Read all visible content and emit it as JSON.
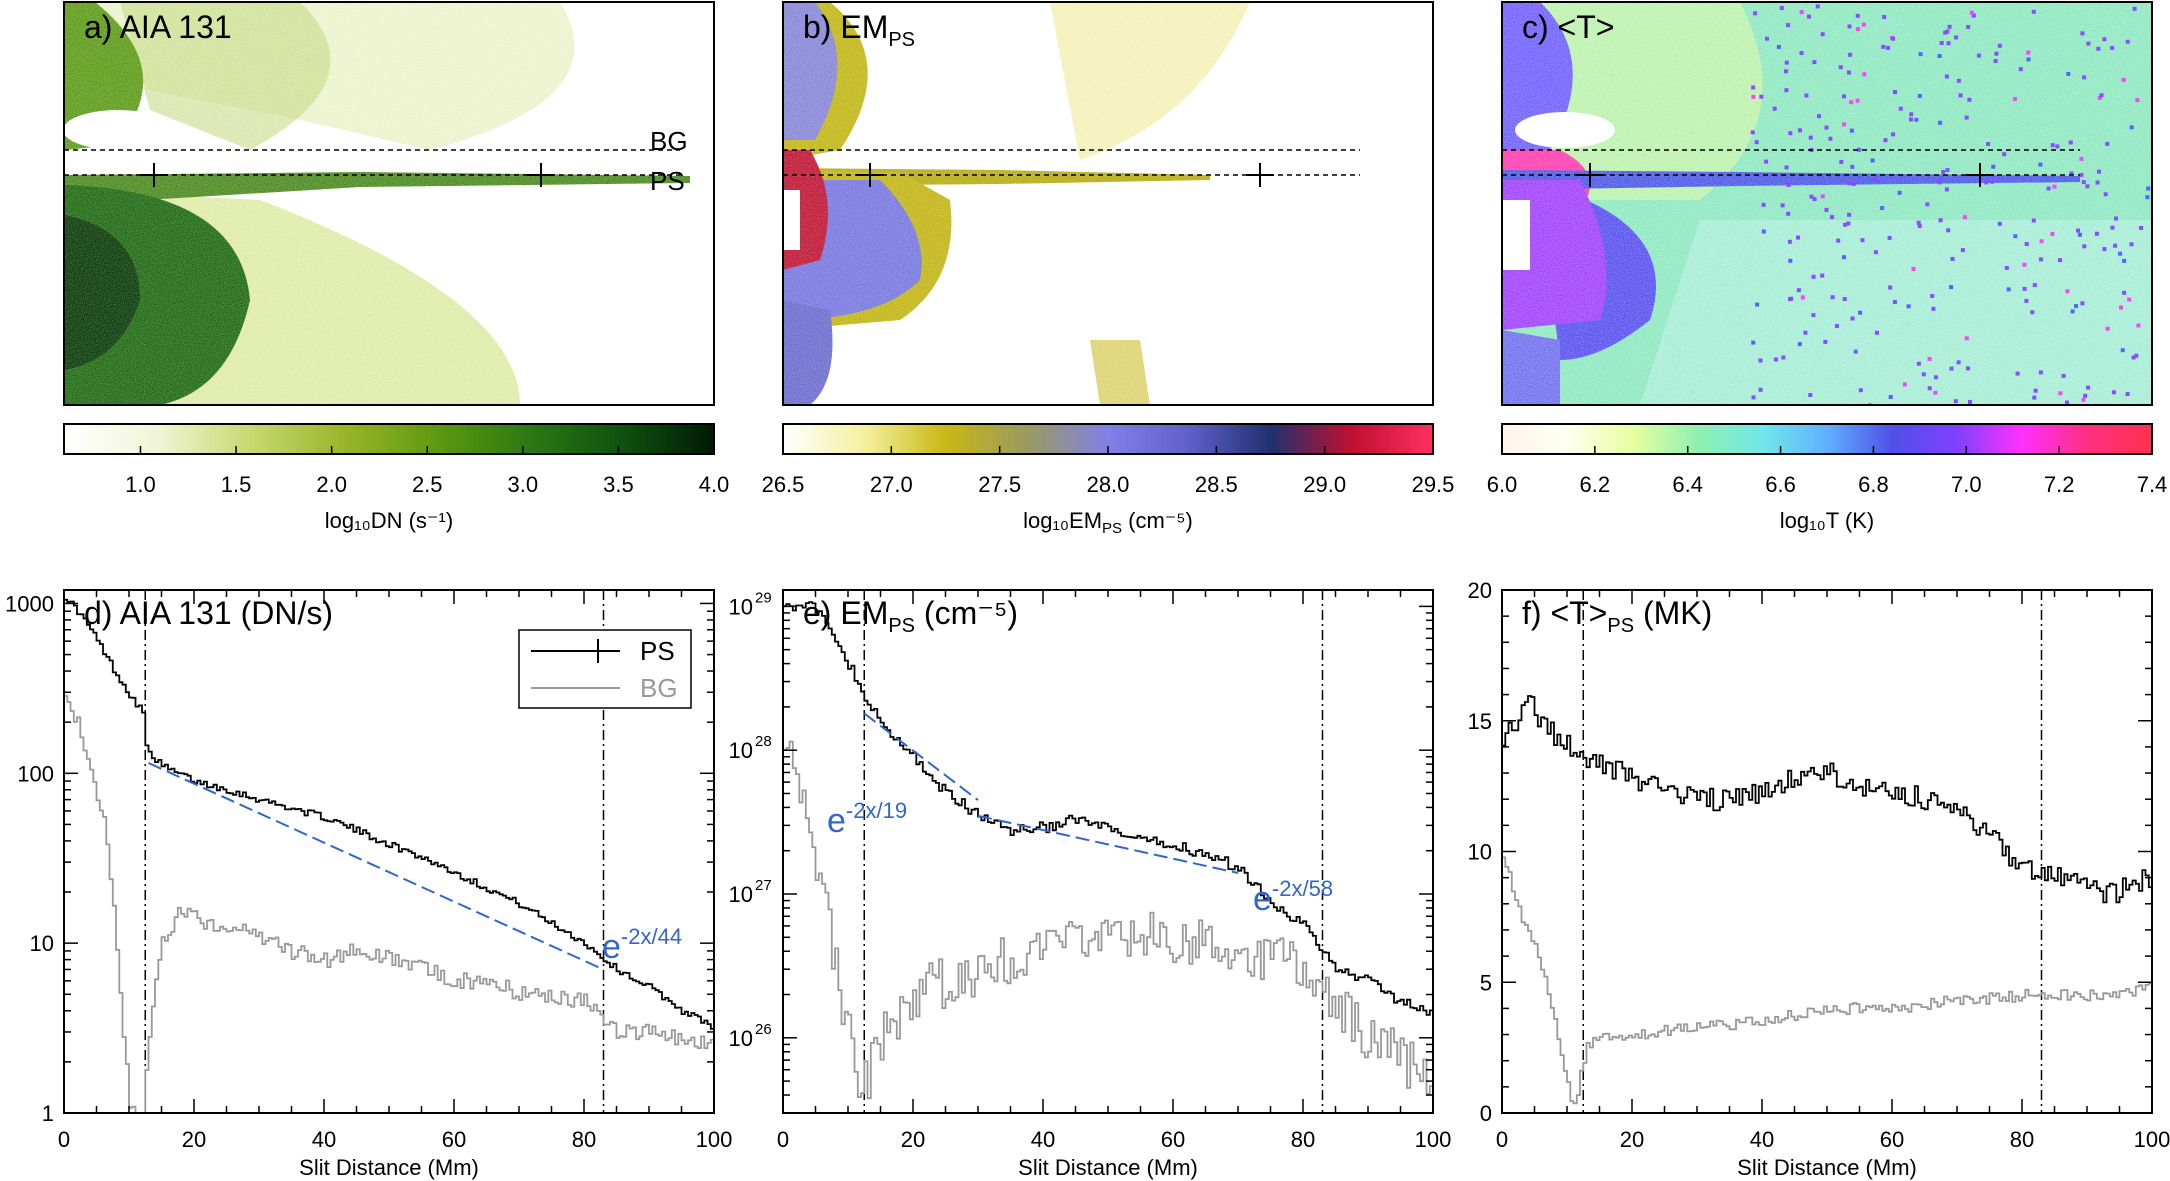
{
  "figure": {
    "maps": [
      {
        "id": "a",
        "label": "a) AIA 131",
        "bg_label": "BG",
        "ps_label": "PS",
        "colorbar": {
          "ticks": [
            "1.0",
            "1.5",
            "2.0",
            "2.5",
            "3.0",
            "3.5",
            "4.0"
          ],
          "label": "log₁₀DN (s⁻¹)"
        }
      },
      {
        "id": "b",
        "label": "b) EM",
        "label_sub": "PS",
        "colorbar": {
          "ticks": [
            "26.5",
            "27.0",
            "27.5",
            "28.0",
            "28.5",
            "29.0",
            "29.5"
          ],
          "label": "log₁₀EM",
          "label_sub": "PS",
          "label_tail": " (cm⁻⁵)"
        }
      },
      {
        "id": "c",
        "label": "c) <T>",
        "colorbar": {
          "ticks": [
            "6.0",
            "6.2",
            "6.4",
            "6.6",
            "6.8",
            "7.0",
            "7.2",
            "7.4"
          ],
          "label": "log₁₀T (K)"
        }
      }
    ],
    "colors": {
      "cmap_a": [
        "#ffffff",
        "#f0f5d8",
        "#c8d970",
        "#9bb52a",
        "#5f9a10",
        "#2c7a12",
        "#0f5210",
        "#021a04"
      ],
      "cmap_b": [
        "#ffffff",
        "#f5f0a0",
        "#c8b814",
        "#9a9a60",
        "#8080e8",
        "#6060c8",
        "#203070",
        "#c01030",
        "#ff3060"
      ],
      "cmap_c": [
        "#fff4ee",
        "#fffff0",
        "#e8ffa0",
        "#90f0b0",
        "#70e8e8",
        "#60b0ff",
        "#5050e8",
        "#8040ff",
        "#ff30ff",
        "#ff3080",
        "#ff3050"
      ],
      "fit": "#3366cc",
      "ps": "#000000",
      "bg": "#999999"
    },
    "plots": [
      {
        "id": "d",
        "title": "d) AIA 131 (DN/s)",
        "yscale": "log",
        "ytick_labels": [
          "1",
          "10",
          "100",
          "1000"
        ],
        "fit_label": "e",
        "fit_exp": "-2x/44",
        "legend": {
          "ps": "PS",
          "bg": "BG"
        }
      },
      {
        "id": "e",
        "title": "e) EM",
        "title_sub": "PS",
        "title_tail": " (cm⁻⁵)",
        "yscale": "log",
        "ytick_labels": [
          "10",
          "10",
          "10",
          "10"
        ],
        "ytick_exps": [
          "26",
          "27",
          "28",
          "29"
        ],
        "fit1_label": "e",
        "fit1_exp": "-2x/19",
        "fit2_label": "e",
        "fit2_exp": "-2x/58"
      },
      {
        "id": "f",
        "title": "f) <T>",
        "title_sub": "PS",
        "title_tail": " (MK)",
        "yscale": "linear",
        "ytick_labels": [
          "0",
          "5",
          "10",
          "15",
          "20"
        ]
      }
    ],
    "xaxis": {
      "label": "Slit Distance (Mm)",
      "tick_labels": [
        "0",
        "20",
        "40",
        "60",
        "80",
        "100"
      ]
    }
  },
  "chart_data": [
    {
      "type": "line",
      "title": "d) AIA 131 (DN/s)",
      "xlabel": "Slit Distance (Mm)",
      "ylabel": "",
      "xlim": [
        0,
        100
      ],
      "ylim": [
        1,
        1200
      ],
      "yscale": "log",
      "vlines": [
        12.5,
        83
      ],
      "series": [
        {
          "name": "PS",
          "x": [
            0,
            2,
            4,
            6,
            8,
            10,
            12,
            12.5,
            15,
            20,
            25,
            30,
            35,
            40,
            45,
            50,
            55,
            60,
            65,
            70,
            75,
            80,
            83,
            85,
            90,
            95,
            100
          ],
          "y": [
            1100,
            900,
            700,
            520,
            380,
            290,
            230,
            140,
            110,
            90,
            80,
            70,
            62,
            55,
            46,
            38,
            32,
            26,
            21,
            17,
            13,
            10,
            8,
            7,
            5.5,
            4,
            3.2
          ]
        },
        {
          "name": "BG",
          "x": [
            0,
            2,
            4,
            6,
            7,
            8,
            9,
            10,
            11,
            12,
            13,
            15,
            18,
            20,
            25,
            30,
            35,
            40,
            45,
            50,
            55,
            60,
            65,
            70,
            75,
            80,
            85,
            90,
            95,
            100
          ],
          "y": [
            320,
            200,
            110,
            50,
            25,
            10,
            3,
            1.2,
            1,
            1,
            3,
            10,
            16,
            14,
            12,
            11,
            9,
            8,
            9,
            8,
            7,
            6,
            6,
            5,
            5,
            4.5,
            3,
            3,
            2.8,
            2.5
          ]
        },
        {
          "name": "fit e^{-2x/44}",
          "x": [
            13,
            83
          ],
          "y": [
            115,
            7
          ]
        }
      ]
    },
    {
      "type": "line",
      "title": "e) EM_PS (cm^-5)",
      "xlabel": "Slit Distance (Mm)",
      "ylabel": "",
      "xlim": [
        0,
        100
      ],
      "ylim": [
        3e+25,
        1.3e+29
      ],
      "yscale": "log",
      "vlines": [
        12.5,
        83
      ],
      "series": [
        {
          "name": "PS",
          "x": [
            0,
            2,
            4,
            6,
            8,
            10,
            12,
            15,
            20,
            25,
            30,
            35,
            40,
            45,
            50,
            55,
            60,
            65,
            70,
            75,
            80,
            85,
            90,
            95,
            100
          ],
          "y": [
            1.1e+29,
            1e+29,
            1.05e+29,
            8e+28,
            6e+28,
            4e+28,
            2.5e+28,
            1.5e+28,
            9e+27,
            5e+27,
            3.5e+27,
            2.8e+27,
            2.9e+27,
            3.3e+27,
            2.8e+27,
            2.3e+27,
            2.2e+27,
            1.9e+27,
            1.5e+27,
            9e+26,
            6e+26,
            3e+26,
            2.5e+26,
            1.8e+26,
            1.5e+26
          ]
        },
        {
          "name": "BG",
          "x": [
            0,
            2,
            4,
            6,
            8,
            10,
            12,
            15,
            20,
            30,
            40,
            50,
            60,
            70,
            80,
            90,
            100
          ],
          "y": [
            1.5e+28,
            8e+27,
            3e+27,
            1e+27,
            3e+26,
            1e+26,
            4e+25,
            1e+26,
            2e+26,
            3e+26,
            4e+26,
            5e+26,
            5e+26,
            4e+26,
            3e+26,
            1e+26,
            5e+25
          ]
        },
        {
          "name": "fit e^{-2x/19}",
          "x": [
            12.5,
            30
          ],
          "y": [
            1.8e+28,
            4.5e+27
          ]
        },
        {
          "name": "fit e^{-2x/58}",
          "x": [
            30,
            70
          ],
          "y": [
            3.5e+27,
            1.4e+27
          ]
        }
      ]
    },
    {
      "type": "line",
      "title": "f) <T>_PS (MK)",
      "xlabel": "Slit Distance (Mm)",
      "ylabel": "",
      "xlim": [
        0,
        100
      ],
      "ylim": [
        0,
        20
      ],
      "yscale": "linear",
      "vlines": [
        12.5,
        83
      ],
      "series": [
        {
          "name": "PS",
          "x": [
            0,
            2,
            4,
            6,
            8,
            10,
            12,
            15,
            20,
            25,
            30,
            35,
            40,
            45,
            50,
            55,
            60,
            65,
            70,
            75,
            80,
            85,
            90,
            95,
            100
          ],
          "y": [
            14.5,
            15,
            15.8,
            15,
            14.5,
            14,
            13.5,
            13.3,
            12.8,
            12.3,
            12,
            12,
            12.2,
            12.8,
            13,
            12.5,
            12.3,
            12,
            11.5,
            10.5,
            9.5,
            9,
            8.5,
            8.5,
            9
          ]
        },
        {
          "name": "BG",
          "x": [
            0,
            2,
            4,
            6,
            8,
            9,
            10,
            11,
            12,
            13,
            15,
            20,
            30,
            40,
            50,
            60,
            70,
            80,
            90,
            100
          ],
          "y": [
            10,
            8,
            7,
            5.5,
            3.5,
            2,
            1,
            0.3,
            1.5,
            2.5,
            3,
            3,
            3.3,
            3.5,
            4,
            4,
            4.3,
            4.5,
            4.5,
            4.8
          ]
        }
      ]
    }
  ]
}
